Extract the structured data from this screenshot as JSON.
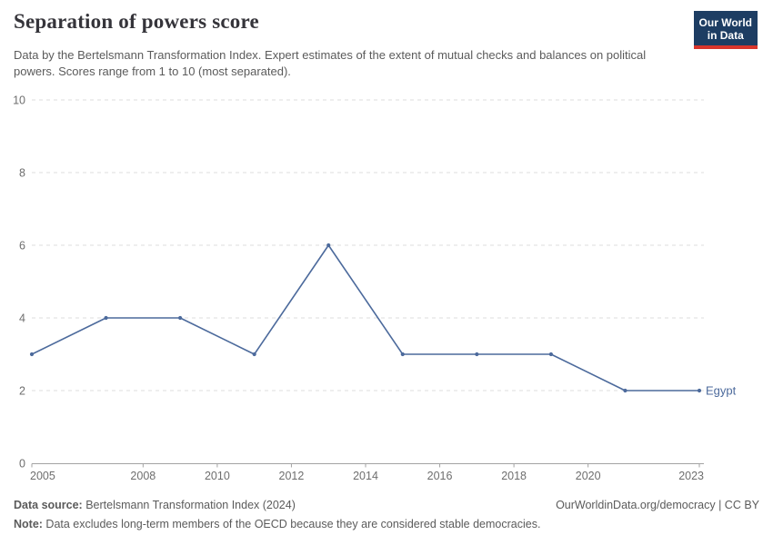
{
  "header": {
    "title": "Separation of powers score",
    "subtitle": "Data by the Bertelsmann Transformation Index. Expert estimates of the extent of mutual checks and balances on political powers. Scores range from 1 to 10 (most separated).",
    "logo": {
      "line1": "Our World",
      "line2": "in Data"
    }
  },
  "chart_data": {
    "type": "line",
    "title": "Separation of powers score",
    "xlabel": "",
    "ylabel": "",
    "xlim": [
      2005,
      2023
    ],
    "ylim": [
      0,
      10
    ],
    "x_ticks": [
      2005,
      2008,
      2010,
      2012,
      2014,
      2016,
      2018,
      2020,
      2023
    ],
    "y_ticks": [
      0,
      2,
      4,
      6,
      8,
      10
    ],
    "grid": true,
    "legend_position": "end-of-line",
    "series": [
      {
        "name": "Egypt",
        "color": "#4c6a9c",
        "x": [
          2005,
          2007,
          2009,
          2011,
          2013,
          2015,
          2017,
          2019,
          2021,
          2023
        ],
        "values": [
          3,
          4,
          4,
          3,
          6,
          3,
          3,
          3,
          2,
          2
        ]
      }
    ]
  },
  "footer": {
    "source_label": "Data source:",
    "source_text": " Bertelsmann Transformation Index (2024)",
    "attribution": "OurWorldinData.org/democracy | CC BY",
    "note_label": "Note:",
    "note_text": " Data excludes long-term members of the OECD because they are considered stable democracies."
  },
  "colors": {
    "line": "#4c6a9c",
    "grid": "#dcdcdc",
    "axis": "#a3a3a3",
    "tick_text": "#6e6e6e",
    "logo_navy": "#1d3d63",
    "logo_red": "#d8352c"
  }
}
